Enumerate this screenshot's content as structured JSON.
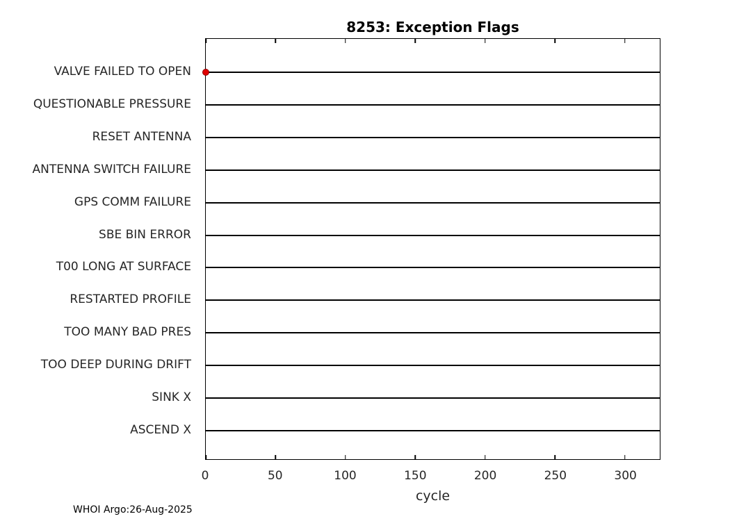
{
  "title": "8253: Exception Flags",
  "footer": "WHOI Argo:26-Aug-2025",
  "chart_data": {
    "type": "scatter",
    "title": "8253: Exception Flags",
    "xlabel": "cycle",
    "ylabel": "",
    "xlim": [
      0,
      325
    ],
    "xticks": [
      0,
      50,
      100,
      150,
      200,
      250,
      300
    ],
    "categories": [
      "VALVE FAILED TO OPEN",
      "QUESTIONABLE PRESSURE",
      "RESET ANTENNA",
      "ANTENNA SWITCH FAILURE",
      "GPS COMM FAILURE",
      "SBE BIN ERROR",
      "T00 LONG AT SURFACE",
      "RESTARTED PROFILE",
      "TOO MANY BAD PRES",
      "TOO DEEP DURING DRIFT",
      "SINK X",
      "ASCEND X"
    ],
    "points": [
      {
        "x": 0,
        "category": "VALVE FAILED TO OPEN"
      }
    ],
    "marker_color": "#e00000",
    "grid": "horizontal-category-lines",
    "legend": "none"
  }
}
